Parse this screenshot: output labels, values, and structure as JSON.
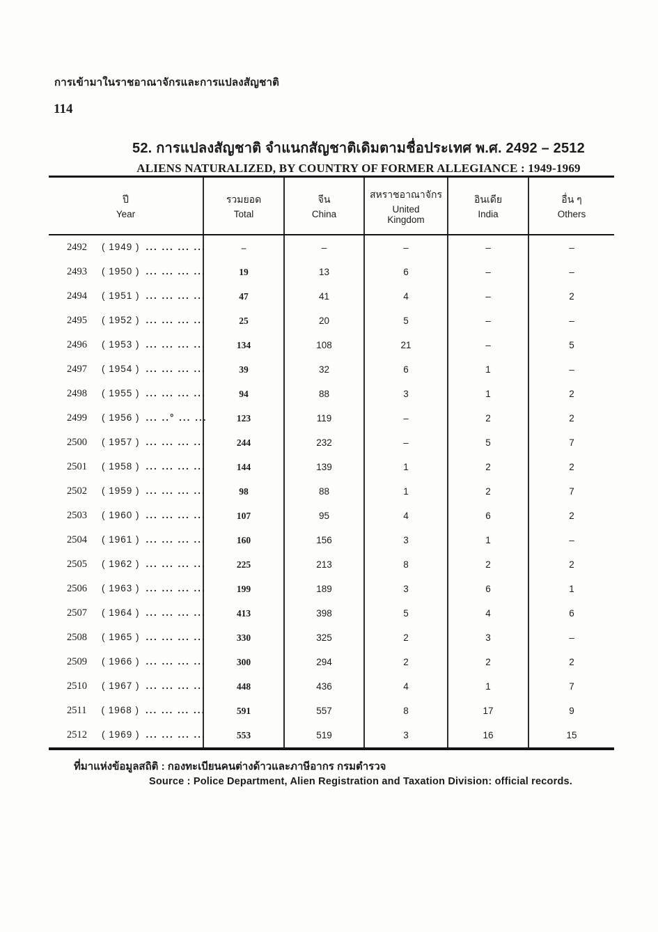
{
  "page_header": {
    "thai_running_head": "การเข้ามาในราชอาณาจักรและการแปลงสัญชาติ",
    "page_number": "114"
  },
  "title": {
    "thai": "52.  การแปลงสัญชาติ จำแนกสัญชาติเดิมตามชื่อประเทศ พ.ศ. 2492 – 2512",
    "english": "ALIENS NATURALIZED, BY COUNTRY OF FORMER ALLEGIANCE : 1949-1969"
  },
  "table": {
    "columns": [
      {
        "thai": "ปี",
        "english": "Year"
      },
      {
        "thai": "รวมยอด",
        "english": "Total"
      },
      {
        "thai": "จีน",
        "english": "China"
      },
      {
        "thai": "สหราชอาณาจักร",
        "english": "United\nKingdom"
      },
      {
        "thai": "อินเดีย",
        "english": "India"
      },
      {
        "thai": "อื่น ๆ",
        "english": "Others"
      }
    ],
    "rows": [
      {
        "year_be": "2492",
        "year_ce": "( 1949 )",
        "dots": "... ... ... ...",
        "total": "–",
        "china": "–",
        "uk": "–",
        "india": "–",
        "others": "–"
      },
      {
        "year_be": "2493",
        "year_ce": "( 1950 )",
        "dots": "... ... ... ...",
        "total": "19",
        "china": "13",
        "uk": "6",
        "india": "–",
        "others": "–"
      },
      {
        "year_be": "2494",
        "year_ce": "( 1951 )",
        "dots": "... ... ... ...",
        "total": "47",
        "china": "41",
        "uk": "4",
        "india": "–",
        "others": "2"
      },
      {
        "year_be": "2495",
        "year_ce": "( 1952 )",
        "dots": "... ... ... ...",
        "total": "25",
        "china": "20",
        "uk": "5",
        "india": "–",
        "others": "–"
      },
      {
        "year_be": "2496",
        "year_ce": "( 1953 )",
        "dots": "... ... ... ...",
        "total": "134",
        "china": "108",
        "uk": "21",
        "india": "–",
        "others": "5"
      },
      {
        "year_be": "2497",
        "year_ce": "( 1954 )",
        "dots": "... ... ... ...",
        "total": "39",
        "china": "32",
        "uk": "6",
        "india": "1",
        "others": "–"
      },
      {
        "year_be": "2498",
        "year_ce": "( 1955 )",
        "dots": "... ... ... ...",
        "total": "94",
        "china": "88",
        "uk": "3",
        "india": "1",
        "others": "2"
      },
      {
        "year_be": "2499",
        "year_ce": "( 1956 )",
        "dots": "... ..° ... ...",
        "total": "123",
        "china": "119",
        "uk": "–",
        "india": "2",
        "others": "2"
      },
      {
        "year_be": "2500",
        "year_ce": "( 1957 )",
        "dots": "... ... ... ...",
        "total": "244",
        "china": "232",
        "uk": "–",
        "india": "5",
        "others": "7"
      },
      {
        "year_be": "2501",
        "year_ce": "( 1958 )",
        "dots": "... ... ... ...",
        "total": "144",
        "china": "139",
        "uk": "1",
        "india": "2",
        "others": "2"
      },
      {
        "year_be": "2502",
        "year_ce": "( 1959 )",
        "dots": "... ... ... ...",
        "total": "98",
        "china": "88",
        "uk": "1",
        "india": "2",
        "others": "7"
      },
      {
        "year_be": "2503",
        "year_ce": "( 1960 )",
        "dots": "... ... ... ...",
        "total": "107",
        "china": "95",
        "uk": "4",
        "india": "6",
        "others": "2"
      },
      {
        "year_be": "2504",
        "year_ce": "( 1961 )",
        "dots": "... ... ... ...",
        "total": "160",
        "china": "156",
        "uk": "3",
        "india": "1",
        "others": "–"
      },
      {
        "year_be": "2505",
        "year_ce": "( 1962 )",
        "dots": "... ... ... ...",
        "total": "225",
        "china": "213",
        "uk": "8",
        "india": "2",
        "others": "2"
      },
      {
        "year_be": "2506",
        "year_ce": "( 1963 )",
        "dots": "... ... ... ...",
        "total": "199",
        "china": "189",
        "uk": "3",
        "india": "6",
        "others": "1"
      },
      {
        "year_be": "2507",
        "year_ce": "( 1964 )",
        "dots": "... ... ... ...",
        "total": "413",
        "china": "398",
        "uk": "5",
        "india": "4",
        "others": "6"
      },
      {
        "year_be": "2508",
        "year_ce": "( 1965 )",
        "dots": "... ... ... ...",
        "total": "330",
        "china": "325",
        "uk": "2",
        "india": "3",
        "others": "–"
      },
      {
        "year_be": "2509",
        "year_ce": "( 1966 )",
        "dots": "... ... ... ...",
        "total": "300",
        "china": "294",
        "uk": "2",
        "india": "2",
        "others": "2"
      },
      {
        "year_be": "2510",
        "year_ce": "( 1967 )",
        "dots": "... ... ... ...",
        "total": "448",
        "china": "436",
        "uk": "4",
        "india": "1",
        "others": "7"
      },
      {
        "year_be": "2511",
        "year_ce": "( 1968 )",
        "dots": "... ... ... ...",
        "total": "591",
        "china": "557",
        "uk": "8",
        "india": "17",
        "others": "9"
      },
      {
        "year_be": "2512",
        "year_ce": "( 1969 )",
        "dots": "... ... ... ...",
        "total": "553",
        "china": "519",
        "uk": "3",
        "india": "16",
        "others": "15"
      }
    ]
  },
  "footer": {
    "source_thai": "ที่มาแห่งข้อมูลสถิติ : กองทะเบียนคนต่างด้าวและภาษีอากร  กรมตำรวจ",
    "source_english": "Source : Police Department, Alien Registration and Taxation Division: official records."
  }
}
